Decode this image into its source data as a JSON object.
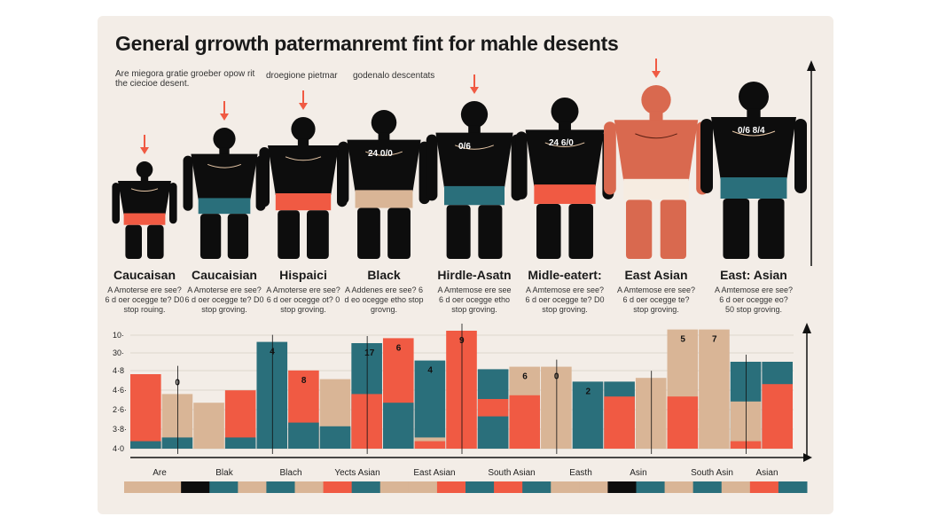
{
  "title": "General grrowth patermanremt fint for mahle desents",
  "notes": [
    "Are miegora gratie groeber opow rit the ciecioe desent.",
    "droegione pietmar",
    "godenalo descentats"
  ],
  "figures": [
    {
      "label": "Caucaisan",
      "desc": "A Amoterse ere see? 6 d oer ocegge te? D0 stop rouing.",
      "skin": "#0d0d0d",
      "shorts": "#f05a43",
      "nums": ""
    },
    {
      "label": "Caucaisian",
      "desc": "A Amoterse ere see? 6 d oer ocegge te? D0 stop groving.",
      "skin": "#0d0d0d",
      "shorts": "#2a6f7b",
      "nums": ""
    },
    {
      "label": "Hispaici",
      "desc": "A Amoterse ere see? 6 d oer ocegge ot? 0 stop groving.",
      "skin": "#0d0d0d",
      "shorts": "#f05a43",
      "nums": ""
    },
    {
      "label": "Black",
      "desc": "A Addenes ere see? 6 d eo ocegge etho stop grovng.",
      "skin": "#0d0d0d",
      "shorts": "#d9b596",
      "nums": "24 0/0"
    },
    {
      "label": "Hirdle-Asatn",
      "desc": "A Amtemose ere see 6 d oer ocegge etho stop groving.",
      "skin": "#0d0d0d",
      "shorts": "#2a6f7b",
      "nums": "0/6"
    },
    {
      "label": "Midle-eatert:",
      "desc": "A Amtemose ere see? 6 d oer ocegge te? D0 stop groving.",
      "skin": "#0d0d0d",
      "shorts": "#f05a43",
      "nums": "24 6/0"
    },
    {
      "label": "East Asian",
      "desc": "A Amtemose ere see? 6 d oer ocegge te? stop groving.",
      "skin": "#d9694f",
      "shorts": "#f6ece1",
      "nums": ""
    },
    {
      "label": "East: Asian",
      "desc": "A Amtemose ere see? 6 d oer ocegge eo? 50 stop groving.",
      "skin": "#0d0d0d",
      "shorts": "#2a6f7b",
      "nums": "0/6 8/4"
    }
  ],
  "colors": {
    "tan": "#d9b596",
    "coral": "#f05a43",
    "teal": "#2a6f7b",
    "black": "#0d0d0d"
  },
  "chart_data": {
    "type": "bar",
    "y_ticks": [
      "10·",
      "30·",
      "4·8",
      "4·6·",
      "2·6·",
      "3·8·",
      "4·0"
    ],
    "categories": [
      "Are",
      "Blak",
      "Blach",
      "Yects Asian",
      "East Asian",
      "South Asian",
      "Easth",
      "Asin",
      "South Asin",
      "Asian"
    ],
    "bars": [
      {
        "top": 6.0,
        "segments": [
          [
            "coral",
            6.0
          ],
          [
            "teal",
            0.6
          ]
        ]
      },
      {
        "top": 6.1,
        "segments": [
          [
            "tan",
            4.4
          ],
          [
            "teal",
            0.9
          ],
          [
            "coral",
            0.0
          ]
        ],
        "label": "0"
      },
      {
        "top": 3.7,
        "segments": [
          [
            "tan",
            3.7
          ]
        ]
      },
      {
        "top": 8.7,
        "segments": [
          [
            "coral",
            4.7
          ],
          [
            "teal",
            0.9
          ],
          [
            "tan",
            0.0
          ]
        ]
      },
      {
        "top": 8.6,
        "segments": [
          [
            "teal",
            8.6
          ],
          [
            "tan",
            0.0
          ]
        ],
        "label": "4"
      },
      {
        "top": 6.3,
        "segments": [
          [
            "coral",
            6.3
          ],
          [
            "teal",
            2.1
          ]
        ],
        "label": "8"
      },
      {
        "top": 5.6,
        "segments": [
          [
            "tan",
            5.6
          ],
          [
            "teal",
            1.8
          ],
          [
            "coral",
            0.0
          ]
        ]
      },
      {
        "top": 8.5,
        "segments": [
          [
            "teal",
            8.5
          ],
          [
            "coral",
            4.4
          ],
          [
            "tan",
            0.0
          ]
        ],
        "label": "17"
      },
      {
        "top": 8.9,
        "segments": [
          [
            "coral",
            8.9
          ],
          [
            "teal",
            3.7
          ]
        ],
        "label": "6"
      },
      {
        "top": 7.1,
        "segments": [
          [
            "teal",
            7.1
          ],
          [
            "tan",
            0.9
          ],
          [
            "coral",
            0.6
          ]
        ],
        "label": "4"
      },
      {
        "top": 9.5,
        "segments": [
          [
            "coral",
            9.5
          ]
        ],
        "label": "9"
      },
      {
        "top": 6.4,
        "segments": [
          [
            "teal",
            6.4
          ],
          [
            "coral",
            4.0
          ],
          [
            "teal",
            2.6
          ]
        ]
      },
      {
        "top": 6.6,
        "segments": [
          [
            "tan",
            6.6
          ],
          [
            "coral",
            4.3
          ]
        ],
        "label": "6"
      },
      {
        "top": 6.6,
        "segments": [
          [
            "tan",
            6.6
          ]
        ],
        "label": "0"
      },
      {
        "top": 5.4,
        "segments": [
          [
            "teal",
            5.4
          ]
        ],
        "label": "2"
      },
      {
        "top": 5.4,
        "segments": [
          [
            "teal",
            5.4
          ],
          [
            "coral",
            4.2
          ]
        ]
      },
      {
        "top": 5.7,
        "segments": [
          [
            "tan",
            5.7
          ]
        ]
      },
      {
        "top": 9.6,
        "segments": [
          [
            "tan",
            9.6
          ],
          [
            "coral",
            4.2
          ]
        ],
        "label": "5"
      },
      {
        "top": 9.6,
        "segments": [
          [
            "tan",
            9.6
          ]
        ],
        "label": "7"
      },
      {
        "top": 7.0,
        "segments": [
          [
            "teal",
            7.0
          ],
          [
            "tan",
            3.8
          ],
          [
            "coral",
            0.6
          ]
        ]
      },
      {
        "top": 7.0,
        "segments": [
          [
            "teal",
            7.0
          ],
          [
            "coral",
            5.2
          ]
        ]
      }
    ],
    "legend_strip": [
      "tan",
      "tan",
      "black",
      "teal",
      "tan",
      "teal",
      "tan",
      "coral",
      "teal",
      "tan",
      "tan",
      "coral",
      "teal",
      "coral",
      "teal",
      "tan",
      "tan",
      "black",
      "teal",
      "tan",
      "teal",
      "tan",
      "coral",
      "teal"
    ]
  }
}
